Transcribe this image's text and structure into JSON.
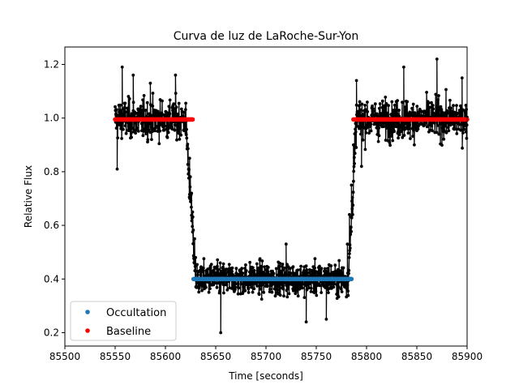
{
  "chart_data": {
    "type": "scatter",
    "title": "Curva de luz de LaRoche-Sur-Yon",
    "xlabel": "Time [seconds]",
    "ylabel": "Relative Flux",
    "xlim": [
      85500,
      85900
    ],
    "ylim": [
      0.15,
      1.265
    ],
    "xticks": [
      85500,
      85550,
      85600,
      85650,
      85700,
      85750,
      85800,
      85850,
      85900
    ],
    "yticks": [
      0.2,
      0.4,
      0.6,
      0.8,
      1.0,
      1.2
    ],
    "xtick_labels": [
      "85500",
      "85550",
      "85600",
      "85650",
      "85700",
      "85750",
      "85800",
      "85850",
      "85900"
    ],
    "ytick_labels": [
      "0.2",
      "0.4",
      "0.6",
      "0.8",
      "1.0",
      "1.2"
    ],
    "grid": false,
    "legend_position": "lower-left",
    "series": [
      {
        "name": "Occultation",
        "color": "#1f77b4",
        "marker": "dot",
        "x_range": [
          85628,
          85785
        ],
        "y": 0.4
      },
      {
        "name": "Baseline",
        "color": "#ff0000",
        "marker": "dot",
        "x_ranges": [
          [
            85550,
            85627
          ],
          [
            85787,
            85900
          ]
        ],
        "y": 0.995
      },
      {
        "color": "#000000",
        "marker": "dot-line",
        "x_range": [
          85550,
          85900
        ],
        "baseline_level": 0.995,
        "occultation_level": 0.4,
        "ingress": [
          85620,
          85630
        ],
        "egress": [
          85782,
          85790
        ],
        "noise_std_baseline": 0.06,
        "noise_std_occultation": 0.05,
        "points": [
          [
            85552,
            0.81
          ],
          [
            85557,
            1.19
          ],
          [
            85568,
            1.16
          ],
          [
            85585,
            1.13
          ],
          [
            85610,
            1.16
          ],
          [
            85621,
            0.99
          ],
          [
            85624,
            0.85
          ],
          [
            85626,
            0.72
          ],
          [
            85627,
            0.65
          ],
          [
            85629,
            0.55
          ],
          [
            85630,
            0.48
          ],
          [
            85655,
            0.2
          ],
          [
            85720,
            0.53
          ],
          [
            85740,
            0.24
          ],
          [
            85760,
            0.25
          ],
          [
            85781,
            0.53
          ],
          [
            85783,
            0.64
          ],
          [
            85785,
            0.75
          ],
          [
            85787,
            0.9
          ],
          [
            85790,
            1.14
          ],
          [
            85795,
            0.82
          ],
          [
            85837,
            1.19
          ],
          [
            85848,
            1.02
          ],
          [
            85870,
            1.22
          ],
          [
            85895,
            1.15
          ]
        ]
      }
    ]
  }
}
